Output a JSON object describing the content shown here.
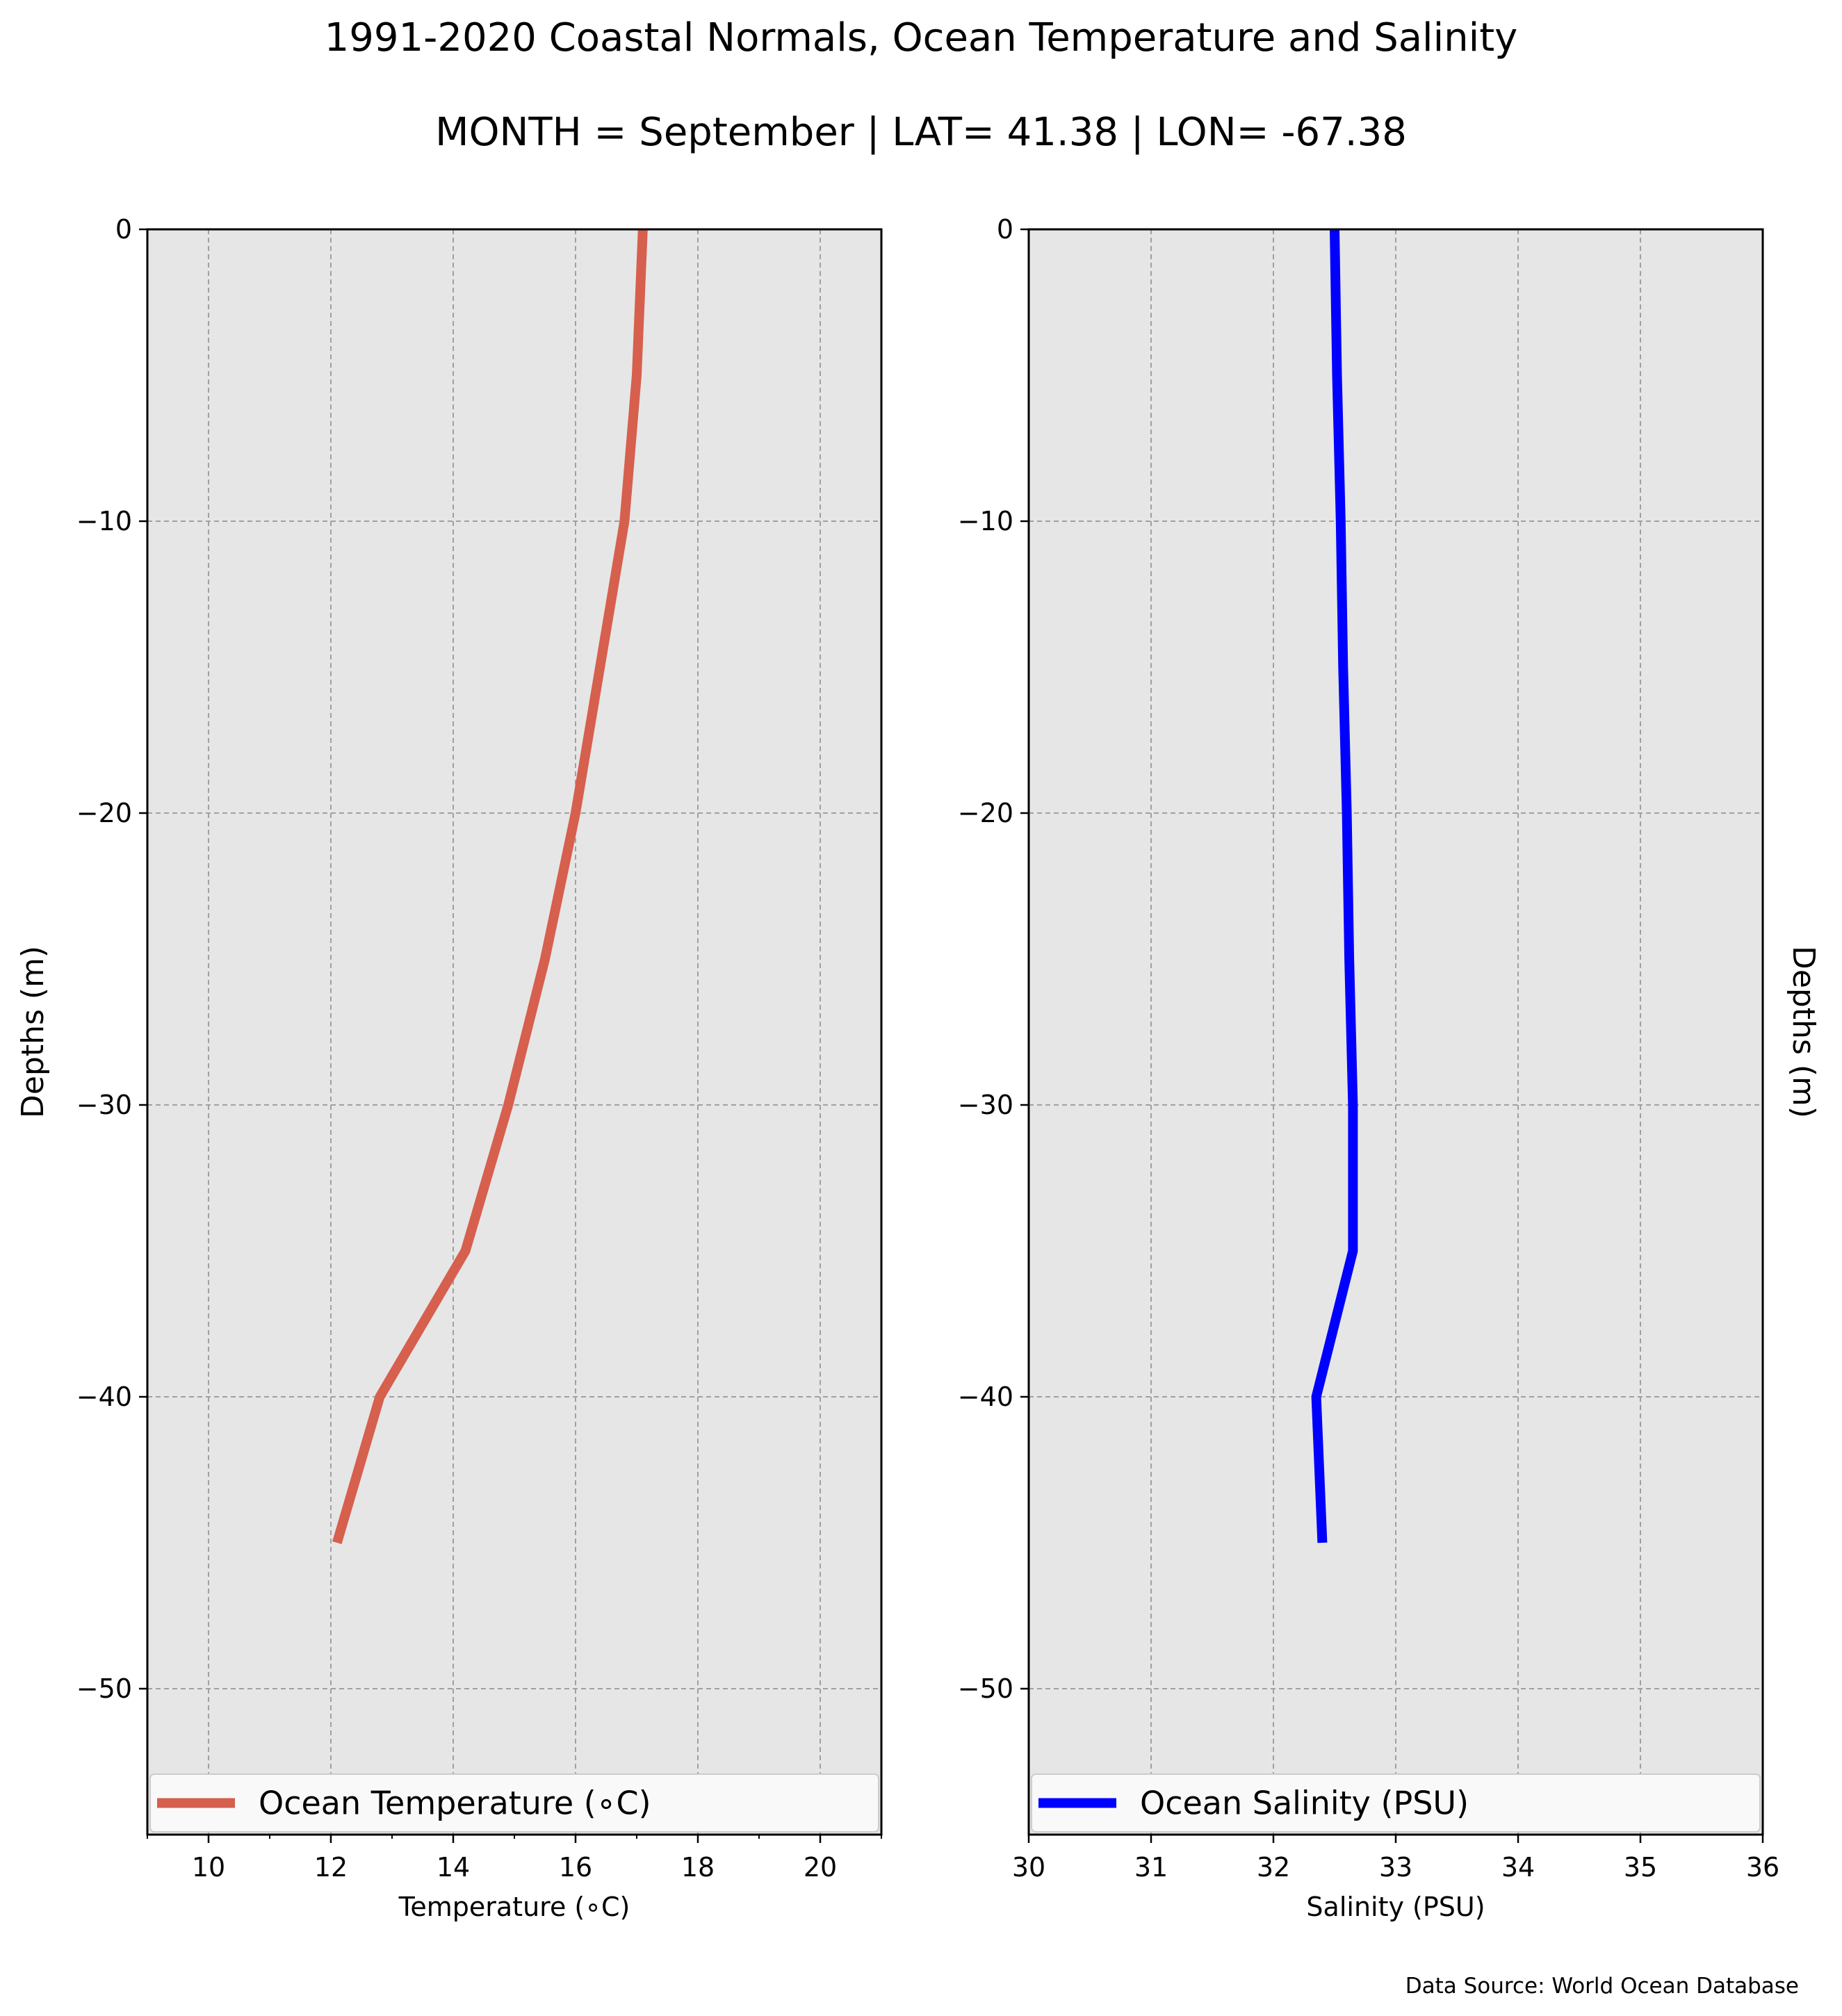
{
  "title": "1991-2020 Coastal Normals, Ocean Temperature and Salinity",
  "subtitle": "MONTH = September | LAT= 41.38 | LON= -67.38",
  "source": "Data Source: World Ocean Database",
  "colors": {
    "temperature": "#d65f4e",
    "salinity": "#0000ff",
    "axes_bg": "#e6e6e6",
    "grid": "#a0a0a0"
  },
  "chart_data": [
    {
      "type": "line",
      "xlabel": "Temperature ($^\\circ$C)",
      "xlabel_display": "Temperature (∘C)",
      "ylabel": "Depths (m)",
      "xlim": [
        9,
        21
      ],
      "ylim": [
        -55,
        0
      ],
      "xticks": [
        10,
        12,
        14,
        16,
        18,
        20
      ],
      "yticks": [
        0,
        -10,
        -20,
        -30,
        -40,
        -50
      ],
      "grid": true,
      "legend_position": "bottom",
      "series": [
        {
          "name": "Ocean Temperature (∘C)",
          "color": "#d65f4e",
          "x": [
            17.1,
            17.0,
            16.8,
            16.4,
            16.0,
            15.5,
            14.9,
            14.2,
            12.8,
            12.1
          ],
          "y": [
            0,
            -5,
            -10,
            -15,
            -20,
            -25,
            -30,
            -35,
            -40,
            -45
          ]
        }
      ]
    },
    {
      "type": "line",
      "xlabel": "Salinity (PSU)",
      "ylabel": "Depths (m)",
      "xlim": [
        30,
        36
      ],
      "ylim": [
        -55,
        0
      ],
      "xticks": [
        30,
        31,
        32,
        33,
        34,
        35,
        36
      ],
      "yticks": [
        0,
        -10,
        -20,
        -30,
        -40,
        -50
      ],
      "grid": true,
      "legend_position": "bottom",
      "series": [
        {
          "name": "Ocean Salinity (PSU)",
          "color": "#0000ff",
          "x": [
            32.5,
            32.52,
            32.55,
            32.57,
            32.6,
            32.62,
            32.65,
            32.65,
            32.35,
            32.4
          ],
          "y": [
            0,
            -5,
            -10,
            -15,
            -20,
            -25,
            -30,
            -35,
            -40,
            -45
          ]
        }
      ]
    }
  ]
}
